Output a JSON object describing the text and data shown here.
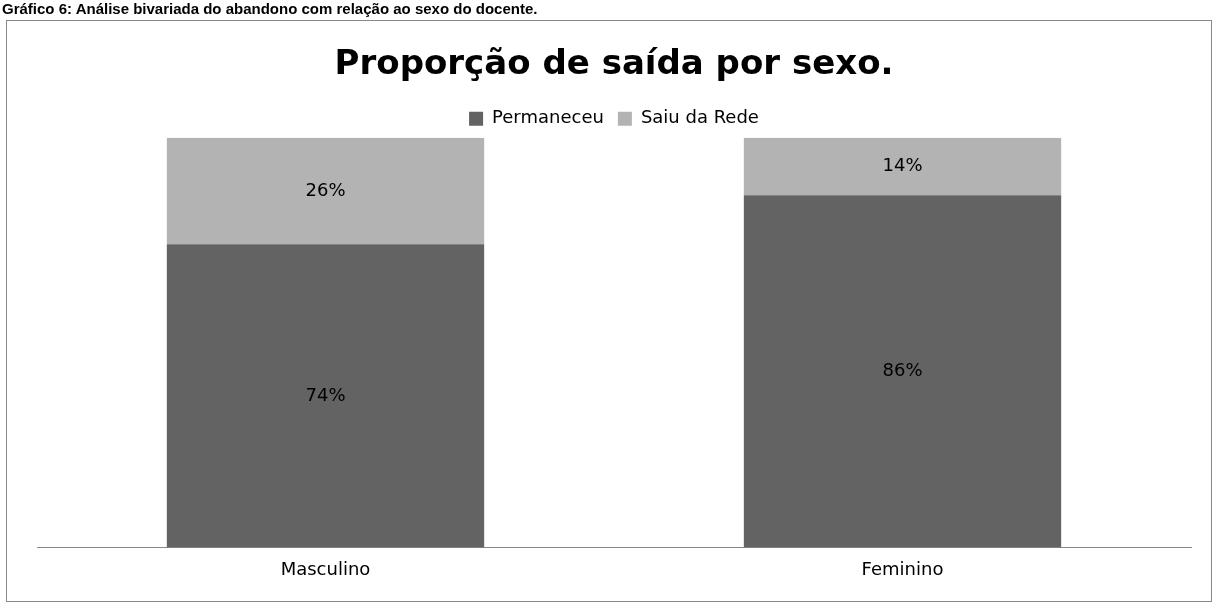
{
  "chart_data": {
    "type": "bar",
    "title": "Proporção de saída por sexo.",
    "annotations": [
      "Gráfico 6: Análise bivariada do abandono com relação ao sexo do docente."
    ],
    "categories": [
      "Masculino",
      "Feminino"
    ],
    "stacked": true,
    "ylim": [
      0,
      100
    ],
    "tick_labels": "x",
    "data_labels": true,
    "legend": "top",
    "grid": false,
    "series": [
      {
        "name": "Permaneceu",
        "color": "#636363",
        "values": [
          74,
          86
        ],
        "value_labels": [
          "74%",
          "86%"
        ]
      },
      {
        "name": "Saiu da Rede",
        "color": "#b3b3b3",
        "values": [
          26,
          14
        ],
        "value_labels": [
          "26%",
          "14%"
        ]
      }
    ]
  }
}
